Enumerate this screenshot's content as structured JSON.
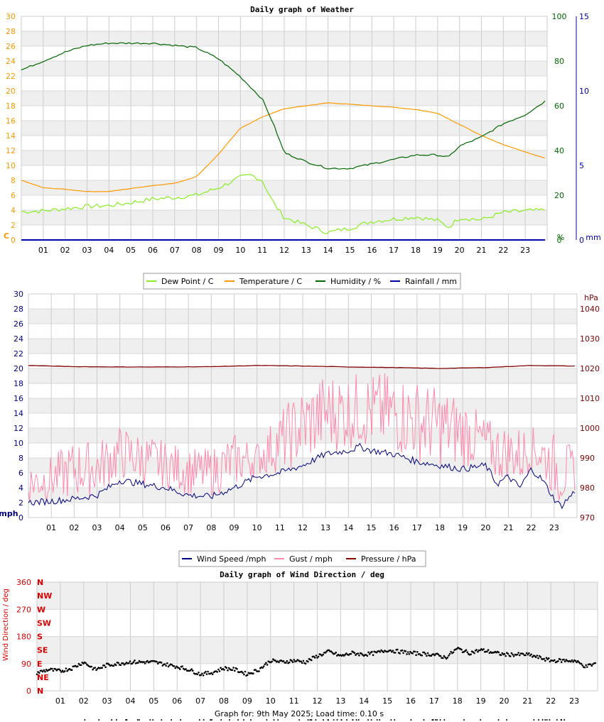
{
  "footer": "Graph for: 9th May 2025; Load time: 0.10 s",
  "chart_data": [
    {
      "type": "line",
      "title": "Daily graph of Weather",
      "x_ticks": [
        "01",
        "02",
        "03",
        "04",
        "05",
        "06",
        "07",
        "08",
        "09",
        "10",
        "11",
        "12",
        "13",
        "14",
        "15",
        "16",
        "17",
        "18",
        "19",
        "20",
        "21",
        "22",
        "23"
      ],
      "y_left": {
        "label": "C",
        "ticks": [
          "0",
          "2",
          "4",
          "6",
          "8",
          "10",
          "12",
          "14",
          "16",
          "18",
          "20",
          "22",
          "24",
          "26",
          "28",
          "30"
        ],
        "range": [
          0,
          30
        ],
        "color": "#ff9900"
      },
      "y_right1": {
        "label": "%",
        "ticks": [
          "0",
          "20",
          "40",
          "60",
          "80",
          "100"
        ],
        "range": [
          0,
          100
        ],
        "color": "#006600"
      },
      "y_right2": {
        "label": "mm",
        "ticks": [
          "0",
          "5",
          "10",
          "15"
        ],
        "range": [
          0,
          15
        ],
        "color": "#0000aa"
      },
      "legend": [
        "Dew Point / C",
        "Temperature / C",
        "Humidity / %",
        "Rainfall / mm"
      ],
      "series": [
        {
          "name": "Dew Point / C",
          "axis": "left",
          "color": "#88ee22",
          "x": [
            0,
            1,
            2,
            3,
            4,
            5,
            6,
            7,
            8,
            9,
            10,
            10.5,
            11,
            11.5,
            12,
            13,
            14,
            15,
            16,
            17,
            18,
            19,
            19.5,
            20,
            21,
            22,
            23,
            23.9
          ],
          "y": [
            3.8,
            3.9,
            4.2,
            4.5,
            4.6,
            5.0,
            5.5,
            5.7,
            6.0,
            7.0,
            8.4,
            8.7,
            8.0,
            5.0,
            3.0,
            2.0,
            1.0,
            1.6,
            2.5,
            2.8,
            3.1,
            2.6,
            1.7,
            3.0,
            2.7,
            3.7,
            3.9,
            4.0
          ]
        },
        {
          "name": "Temperature / C",
          "axis": "left",
          "color": "#ff9900",
          "x": [
            0,
            1,
            2,
            3,
            4,
            5,
            6,
            7,
            8,
            9,
            10,
            11,
            12,
            13,
            14,
            15,
            16,
            17,
            18,
            19,
            20,
            21,
            22,
            23,
            23.9
          ],
          "y": [
            8.0,
            7.0,
            6.8,
            6.5,
            6.5,
            6.9,
            7.3,
            7.6,
            8.5,
            11.5,
            15.0,
            16.5,
            17.6,
            18.0,
            18.4,
            18.2,
            18.0,
            17.8,
            17.5,
            17.0,
            15.5,
            14.0,
            12.8,
            11.8,
            11.0
          ]
        },
        {
          "name": "Humidity / %",
          "axis": "right1",
          "color": "#006600",
          "x": [
            0,
            1,
            2,
            3,
            4,
            5,
            6,
            7,
            8,
            9,
            10,
            11,
            11.5,
            12,
            13,
            14,
            15,
            16,
            17,
            18,
            19,
            19.5,
            20,
            21,
            22,
            23,
            23.9
          ],
          "y": [
            76,
            80,
            84,
            87,
            88,
            88,
            88,
            87,
            86,
            81,
            73,
            63,
            52,
            39,
            35,
            32,
            32,
            34,
            36,
            38,
            38,
            37,
            42,
            46,
            52,
            56,
            62
          ]
        },
        {
          "name": "Rainfall / mm",
          "axis": "right2",
          "color": "#0000aa",
          "x": [
            0,
            23.9
          ],
          "y": [
            0,
            0
          ]
        }
      ]
    },
    {
      "type": "line",
      "title": "",
      "x_ticks": [
        "01",
        "02",
        "03",
        "04",
        "05",
        "06",
        "07",
        "08",
        "09",
        "10",
        "11",
        "12",
        "13",
        "14",
        "15",
        "16",
        "17",
        "18",
        "19",
        "20",
        "21",
        "22",
        "23"
      ],
      "y_left": {
        "label": "mph",
        "ticks": [
          "0",
          "2",
          "4",
          "6",
          "8",
          "10",
          "12",
          "14",
          "16",
          "18",
          "20",
          "22",
          "24",
          "26",
          "28",
          "30"
        ],
        "range": [
          0,
          30
        ],
        "color": "#000080"
      },
      "y_right": {
        "label": "hPa",
        "ticks": [
          "970",
          "980",
          "990",
          "1000",
          "1010",
          "1020",
          "1030",
          "1040"
        ],
        "range": [
          970,
          1045
        ],
        "color": "#800000"
      },
      "legend": [
        "Wind Speed /mph",
        "Gust / mph",
        "Pressure / hPa"
      ],
      "series": [
        {
          "name": "Wind Speed /mph",
          "axis": "left",
          "color": "#000080",
          "x": [
            0,
            1,
            2,
            3,
            4,
            5,
            6,
            7,
            8,
            9,
            10,
            11,
            12,
            13,
            14,
            14.5,
            15,
            16,
            17,
            18,
            19,
            20,
            20.5,
            21,
            21.5,
            22,
            22.5,
            23,
            23.3,
            23.9
          ],
          "y": [
            2.0,
            2.2,
            2.5,
            3.0,
            5.0,
            4.5,
            4.0,
            3.0,
            2.8,
            4.0,
            5.5,
            6.0,
            7.0,
            8.5,
            9.0,
            9.5,
            9.0,
            8.5,
            7.5,
            7.0,
            6.5,
            7.0,
            4.5,
            5.5,
            4.0,
            6.5,
            5.0,
            2.5,
            1.5,
            3.5
          ]
        },
        {
          "name": "Gust / mph",
          "axis": "left",
          "color": "#ff88aa",
          "x": [
            0,
            1,
            2,
            3,
            4,
            5,
            6,
            7,
            8,
            9,
            10,
            11,
            12,
            13,
            14,
            15,
            16,
            17,
            18,
            19,
            20,
            21,
            22,
            23,
            23.9
          ],
          "y": [
            7,
            8,
            10,
            10,
            12,
            11,
            10,
            9,
            9,
            11,
            10,
            14,
            17,
            19,
            19,
            19,
            19,
            18,
            17,
            16,
            13,
            12,
            12,
            11,
            9
          ]
        },
        {
          "name": "Pressure / hPa",
          "axis": "right",
          "color": "#800000",
          "x": [
            0,
            2,
            4,
            6,
            8,
            10,
            12,
            14,
            16,
            18,
            20,
            22,
            23.9
          ],
          "y": [
            1021,
            1020.6,
            1020.5,
            1020.5,
            1020.6,
            1021,
            1020.8,
            1020.5,
            1020.3,
            1020,
            1020.3,
            1021,
            1020.8
          ]
        }
      ]
    },
    {
      "type": "scatter",
      "title": "Daily graph of Wind Direction / deg",
      "ylabel": "Wind Direction / deg",
      "x_ticks": [
        "01",
        "02",
        "03",
        "04",
        "05",
        "06",
        "07",
        "08",
        "09",
        "10",
        "11",
        "12",
        "13",
        "14",
        "15",
        "16",
        "17",
        "18",
        "19",
        "20",
        "21",
        "22",
        "23"
      ],
      "y_ticks": [
        "0",
        "90",
        "180",
        "270",
        "360"
      ],
      "compass": [
        "N",
        "NE",
        "E",
        "SE",
        "S",
        "SW",
        "W",
        "NW",
        "N"
      ],
      "range": [
        0,
        360
      ],
      "color": "#dd0000",
      "series": [
        {
          "name": "",
          "x": [
            0,
            0.5,
            1,
            1.5,
            2,
            2.5,
            3,
            3.5,
            4,
            5,
            6,
            6.5,
            7,
            7.5,
            8,
            8.5,
            9,
            9.5,
            10,
            10.5,
            11,
            11.5,
            12,
            12.5,
            13,
            13.5,
            14,
            14.5,
            15,
            15.5,
            16,
            17,
            17.5,
            18,
            18.5,
            19,
            20,
            21,
            22,
            23,
            23.5,
            23.9
          ],
          "y": [
            60,
            70,
            65,
            75,
            95,
            70,
            85,
            90,
            95,
            95,
            80,
            70,
            55,
            60,
            75,
            70,
            55,
            70,
            100,
            95,
            100,
            95,
            115,
            130,
            115,
            125,
            120,
            125,
            135,
            130,
            125,
            120,
            110,
            140,
            125,
            135,
            120,
            120,
            100,
            100,
            80,
            90
          ]
        }
      ]
    }
  ]
}
